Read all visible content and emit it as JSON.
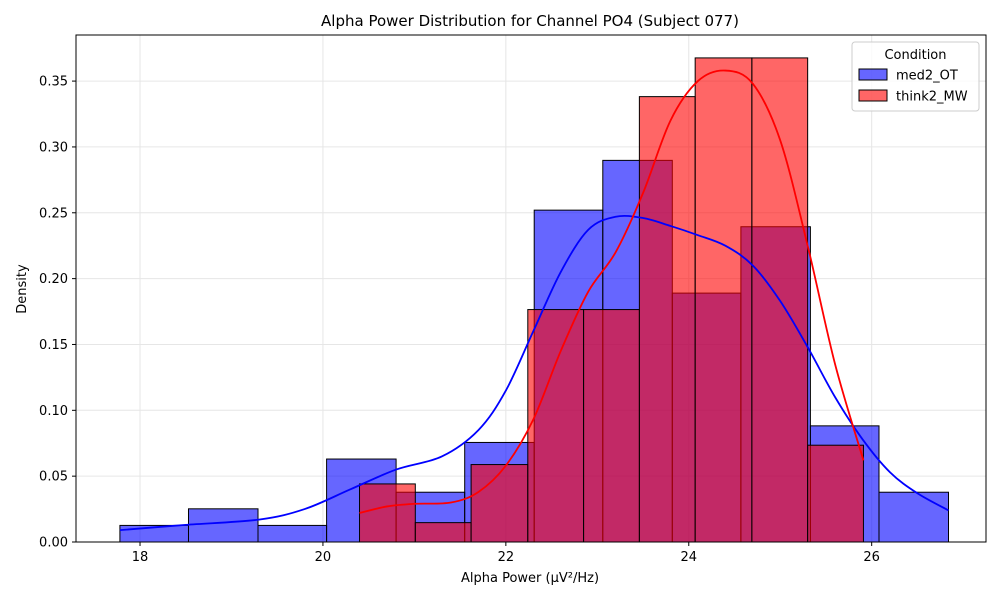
{
  "chart_data": {
    "type": "histogram",
    "title": "Alpha Power Distribution for Channel PO4 (Subject 077)",
    "xlabel": "Alpha Power (μV²/Hz)",
    "ylabel": "Density",
    "xlim": [
      17.3,
      27.25
    ],
    "ylim": [
      0,
      0.385
    ],
    "xticks": [
      18,
      20,
      22,
      24,
      26
    ],
    "yticks": [
      0.0,
      0.05,
      0.1,
      0.15,
      0.2,
      0.25,
      0.3,
      0.35
    ],
    "grid": true,
    "legend": {
      "title": "Condition",
      "placement": "top-right"
    },
    "series": [
      {
        "name": "med2_OT",
        "color": "#0000ff",
        "fill_alpha": 0.6,
        "bins": [
          {
            "x0": 17.78,
            "x1": 18.53,
            "density": 0.0126
          },
          {
            "x0": 18.53,
            "x1": 19.29,
            "density": 0.0252
          },
          {
            "x0": 19.29,
            "x1": 20.04,
            "density": 0.0126
          },
          {
            "x0": 20.04,
            "x1": 20.8,
            "density": 0.063
          },
          {
            "x0": 20.8,
            "x1": 21.55,
            "density": 0.0378
          },
          {
            "x0": 21.55,
            "x1": 22.31,
            "density": 0.0756
          },
          {
            "x0": 22.31,
            "x1": 23.06,
            "density": 0.252
          },
          {
            "x0": 23.06,
            "x1": 23.82,
            "density": 0.2898
          },
          {
            "x0": 23.82,
            "x1": 24.57,
            "density": 0.189
          },
          {
            "x0": 24.57,
            "x1": 25.33,
            "density": 0.2394
          },
          {
            "x0": 25.33,
            "x1": 26.08,
            "density": 0.0882
          },
          {
            "x0": 26.08,
            "x1": 26.84,
            "density": 0.0378
          }
        ],
        "kde": [
          {
            "x": 17.78,
            "y": 0.009
          },
          {
            "x": 18.5,
            "y": 0.013
          },
          {
            "x": 19.3,
            "y": 0.017
          },
          {
            "x": 19.8,
            "y": 0.025
          },
          {
            "x": 20.3,
            "y": 0.04
          },
          {
            "x": 20.8,
            "y": 0.055
          },
          {
            "x": 21.3,
            "y": 0.065
          },
          {
            "x": 21.7,
            "y": 0.085
          },
          {
            "x": 22.0,
            "y": 0.115
          },
          {
            "x": 22.3,
            "y": 0.16
          },
          {
            "x": 22.6,
            "y": 0.205
          },
          {
            "x": 22.9,
            "y": 0.237
          },
          {
            "x": 23.2,
            "y": 0.247
          },
          {
            "x": 23.5,
            "y": 0.246
          },
          {
            "x": 23.8,
            "y": 0.24
          },
          {
            "x": 24.1,
            "y": 0.233
          },
          {
            "x": 24.4,
            "y": 0.225
          },
          {
            "x": 24.7,
            "y": 0.21
          },
          {
            "x": 25.0,
            "y": 0.183
          },
          {
            "x": 25.3,
            "y": 0.148
          },
          {
            "x": 25.6,
            "y": 0.11
          },
          {
            "x": 25.9,
            "y": 0.078
          },
          {
            "x": 26.2,
            "y": 0.053
          },
          {
            "x": 26.5,
            "y": 0.037
          },
          {
            "x": 26.84,
            "y": 0.024
          }
        ]
      },
      {
        "name": "think2_MW",
        "color": "#ff0000",
        "fill_alpha": 0.6,
        "bins": [
          {
            "x0": 20.4,
            "x1": 21.01,
            "density": 0.0441
          },
          {
            "x0": 21.01,
            "x1": 21.62,
            "density": 0.0147
          },
          {
            "x0": 21.62,
            "x1": 22.24,
            "density": 0.0588
          },
          {
            "x0": 22.24,
            "x1": 22.85,
            "density": 0.1765
          },
          {
            "x0": 22.85,
            "x1": 23.46,
            "density": 0.1765
          },
          {
            "x0": 23.46,
            "x1": 24.07,
            "density": 0.3382
          },
          {
            "x0": 24.07,
            "x1": 24.69,
            "density": 0.3676
          },
          {
            "x0": 24.69,
            "x1": 25.3,
            "density": 0.3676
          },
          {
            "x0": 25.3,
            "x1": 25.91,
            "density": 0.0735
          }
        ],
        "kde": [
          {
            "x": 20.4,
            "y": 0.022
          },
          {
            "x": 20.7,
            "y": 0.027
          },
          {
            "x": 21.0,
            "y": 0.029
          },
          {
            "x": 21.4,
            "y": 0.03
          },
          {
            "x": 21.7,
            "y": 0.038
          },
          {
            "x": 22.0,
            "y": 0.058
          },
          {
            "x": 22.3,
            "y": 0.093
          },
          {
            "x": 22.6,
            "y": 0.145
          },
          {
            "x": 22.9,
            "y": 0.19
          },
          {
            "x": 23.2,
            "y": 0.22
          },
          {
            "x": 23.5,
            "y": 0.265
          },
          {
            "x": 23.8,
            "y": 0.32
          },
          {
            "x": 24.1,
            "y": 0.35
          },
          {
            "x": 24.4,
            "y": 0.358
          },
          {
            "x": 24.7,
            "y": 0.348
          },
          {
            "x": 25.0,
            "y": 0.305
          },
          {
            "x": 25.3,
            "y": 0.225
          },
          {
            "x": 25.6,
            "y": 0.135
          },
          {
            "x": 25.91,
            "y": 0.062
          }
        ]
      }
    ]
  }
}
